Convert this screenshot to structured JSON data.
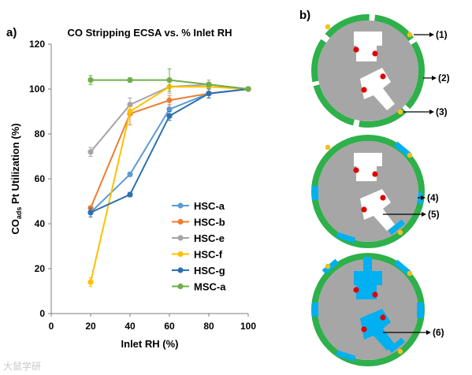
{
  "panel_a_label": "a)",
  "panel_b_label": "b)",
  "chart_data": {
    "type": "line",
    "title": "CO Stripping ECSA vs. % Inlet RH",
    "xlabel": "Inlet RH (%)",
    "ylabel_main": "CO",
    "ylabel_sub": "ads",
    "ylabel_rest": " Pt Utilization  (%)",
    "xlim": [
      0,
      100
    ],
    "ylim": [
      0,
      120
    ],
    "x_ticks": [
      0,
      20,
      40,
      60,
      80,
      100
    ],
    "y_ticks": [
      0,
      20,
      40,
      60,
      80,
      100,
      120
    ],
    "grid": false,
    "legend_position": "lower-right",
    "series": [
      {
        "name": "HSC-a",
        "color": "#5b9bd5",
        "x": [
          20,
          40,
          60,
          80,
          100
        ],
        "y": [
          45,
          62,
          91,
          98,
          100
        ],
        "err": [
          1,
          1,
          2,
          2,
          0
        ]
      },
      {
        "name": "HSC-b",
        "color": "#ed7d31",
        "x": [
          20,
          40,
          60,
          80,
          100
        ],
        "y": [
          47,
          89,
          95,
          98,
          100
        ],
        "err": [
          1,
          5,
          2,
          2,
          0
        ]
      },
      {
        "name": "HSC-e",
        "color": "#a5a5a5",
        "x": [
          20,
          40,
          60,
          80,
          100
        ],
        "y": [
          72,
          93,
          101,
          102,
          100
        ],
        "err": [
          2,
          3,
          3,
          2,
          0
        ]
      },
      {
        "name": "HSC-f",
        "color": "#ffc000",
        "x": [
          20,
          40,
          60,
          80,
          100
        ],
        "y": [
          14,
          90,
          101,
          101,
          100
        ],
        "err": [
          2,
          2,
          2,
          2,
          0
        ]
      },
      {
        "name": "HSC-g",
        "color": "#2e6fb0",
        "x": [
          20,
          40,
          60,
          80,
          100
        ],
        "y": [
          45,
          53,
          88,
          98,
          100
        ],
        "err": [
          2,
          1,
          2,
          2,
          0
        ]
      },
      {
        "name": "MSC-a",
        "color": "#70ad47",
        "x": [
          20,
          40,
          60,
          80,
          100
        ],
        "y": [
          104,
          104,
          104,
          102,
          100
        ],
        "err": [
          2,
          1,
          5,
          1,
          0
        ]
      }
    ]
  },
  "diagram": {
    "callouts": [
      "(1)",
      "(2)",
      "(3)",
      "(4)",
      "(5)",
      "(6)"
    ],
    "colors": {
      "disc": "#a6a6a6",
      "ring": "#2eb04a",
      "wet": "#00b0f0",
      "dot": "#e00000",
      "marker": "#f2c020"
    }
  },
  "watermark": "大鼠学研"
}
